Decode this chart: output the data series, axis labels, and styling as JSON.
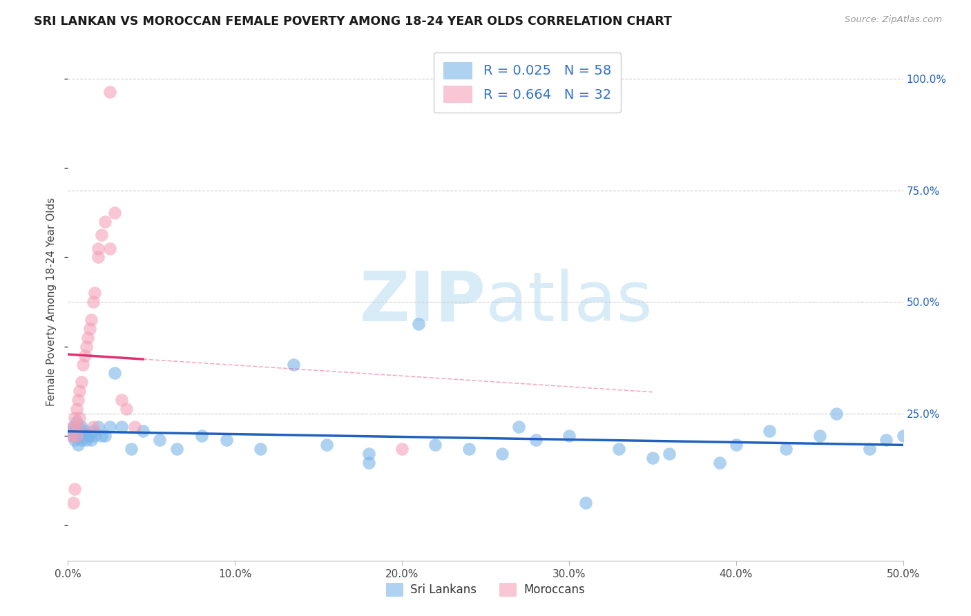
{
  "title": "SRI LANKAN VS MOROCCAN FEMALE POVERTY AMONG 18-24 YEAR OLDS CORRELATION CHART",
  "source": "Source: ZipAtlas.com",
  "ylabel": "Female Poverty Among 18-24 Year Olds",
  "xlim": [
    0.0,
    0.5
  ],
  "ylim": [
    -0.08,
    1.08
  ],
  "xtick_vals": [
    0.0,
    0.1,
    0.2,
    0.3,
    0.4,
    0.5
  ],
  "ytick_vals_right": [
    0.25,
    0.5,
    0.75,
    1.0
  ],
  "ytick_labels_right": [
    "25.0%",
    "50.0%",
    "75.0%",
    "100.0%"
  ],
  "grid_color": "#cccccc",
  "watermark_color": "#d8ecf8",
  "sri_lankan_color": "#7ab4e8",
  "moroccan_color": "#f4a0b8",
  "sri_lankan_trend_color": "#2060c0",
  "moroccan_trend_color": "#e03070",
  "legend_text_color": "#3070d0",
  "sri_x": [
    0.002,
    0.003,
    0.003,
    0.004,
    0.004,
    0.005,
    0.005,
    0.006,
    0.006,
    0.007,
    0.007,
    0.008,
    0.008,
    0.009,
    0.01,
    0.011,
    0.012,
    0.013,
    0.014,
    0.015,
    0.016,
    0.018,
    0.02,
    0.022,
    0.025,
    0.028,
    0.032,
    0.038,
    0.045,
    0.055,
    0.065,
    0.08,
    0.095,
    0.115,
    0.135,
    0.155,
    0.18,
    0.21,
    0.24,
    0.27,
    0.3,
    0.33,
    0.36,
    0.4,
    0.43,
    0.46,
    0.49,
    0.5,
    0.28,
    0.35,
    0.42,
    0.18,
    0.22,
    0.26,
    0.31,
    0.39,
    0.45,
    0.48
  ],
  "sri_y": [
    0.21,
    0.2,
    0.22,
    0.19,
    0.21,
    0.23,
    0.2,
    0.18,
    0.22,
    0.21,
    0.2,
    0.19,
    0.22,
    0.2,
    0.21,
    0.19,
    0.2,
    0.2,
    0.19,
    0.21,
    0.2,
    0.22,
    0.2,
    0.2,
    0.22,
    0.34,
    0.22,
    0.17,
    0.21,
    0.19,
    0.17,
    0.2,
    0.19,
    0.17,
    0.36,
    0.18,
    0.16,
    0.45,
    0.17,
    0.22,
    0.2,
    0.17,
    0.16,
    0.18,
    0.17,
    0.25,
    0.19,
    0.2,
    0.19,
    0.15,
    0.21,
    0.14,
    0.18,
    0.16,
    0.05,
    0.14,
    0.2,
    0.17
  ],
  "mor_x": [
    0.002,
    0.003,
    0.003,
    0.004,
    0.004,
    0.005,
    0.005,
    0.006,
    0.006,
    0.007,
    0.007,
    0.008,
    0.009,
    0.01,
    0.011,
    0.012,
    0.013,
    0.014,
    0.015,
    0.016,
    0.018,
    0.02,
    0.022,
    0.025,
    0.028,
    0.032,
    0.035,
    0.04,
    0.018,
    0.015,
    0.2,
    0.025
  ],
  "mor_y": [
    0.2,
    0.22,
    0.05,
    0.24,
    0.08,
    0.26,
    0.2,
    0.28,
    0.22,
    0.3,
    0.24,
    0.32,
    0.36,
    0.38,
    0.4,
    0.42,
    0.44,
    0.46,
    0.5,
    0.52,
    0.62,
    0.65,
    0.68,
    0.62,
    0.7,
    0.28,
    0.26,
    0.22,
    0.6,
    0.22,
    0.17,
    0.97
  ]
}
